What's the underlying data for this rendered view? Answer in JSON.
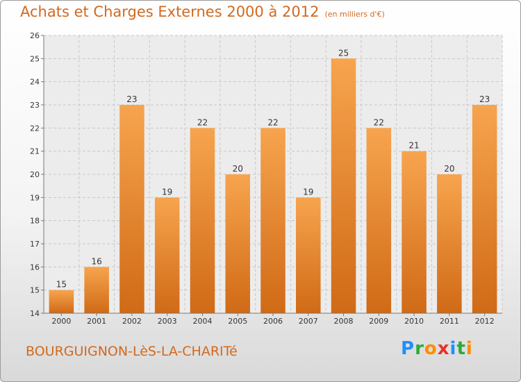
{
  "header": {
    "title": "Achats et Charges Externes 2000 à 2012",
    "unit": "(en milliers d'€)"
  },
  "footer": {
    "commune": "BOURGUIGNON-LèS-LA-CHARITé",
    "logo": "Proxiti"
  },
  "colors": {
    "bar_top": "#f7a44e",
    "bar_bottom": "#d06a16",
    "text_accent": "#d2691e"
  },
  "chart_data": {
    "type": "bar",
    "categories": [
      "2000",
      "2001",
      "2002",
      "2003",
      "2004",
      "2005",
      "2006",
      "2007",
      "2008",
      "2009",
      "2010",
      "2011",
      "2012"
    ],
    "values": [
      15,
      16,
      23,
      19,
      22,
      20,
      22,
      19,
      25,
      22,
      21,
      20,
      23
    ],
    "title": "Achats et Charges Externes 2000 à 2012",
    "ylim": [
      14,
      26
    ],
    "yticks": [
      14,
      15,
      16,
      17,
      18,
      19,
      20,
      21,
      22,
      23,
      24,
      25,
      26
    ],
    "grid": true
  }
}
